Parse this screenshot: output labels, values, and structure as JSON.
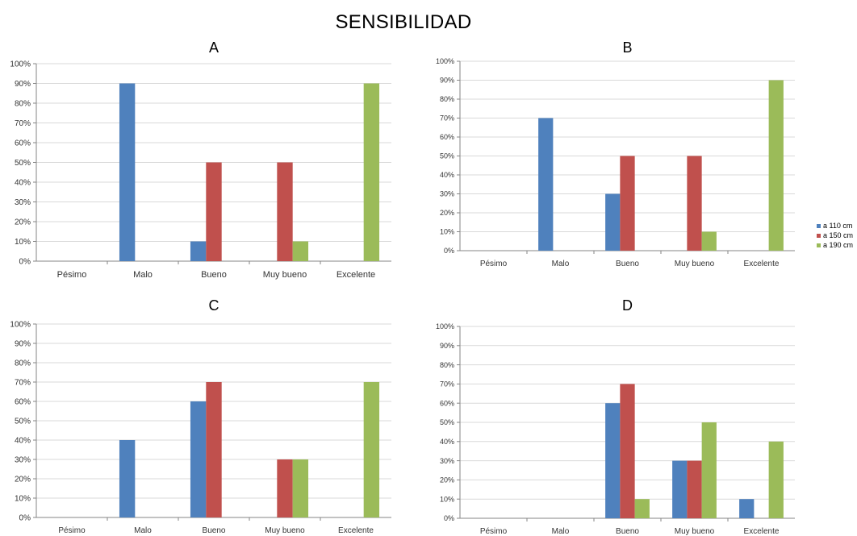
{
  "figure": {
    "title": "SENSIBILIDAD",
    "colors": {
      "a110": "#4f81bd",
      "a150": "#c0504d",
      "a190": "#9bbb59",
      "grid": "#d9d9d9",
      "axis": "#868686"
    }
  },
  "legend": [
    {
      "name": "a 110 cm",
      "color": "#4f81bd"
    },
    {
      "name": "a 150 cm",
      "color": "#c0504d"
    },
    {
      "name": "a 190 cm",
      "color": "#9bbb59"
    }
  ],
  "chart_data": [
    {
      "type": "bar",
      "title": "A",
      "categories": [
        "Pésimo",
        "Malo",
        "Bueno",
        "Muy bueno",
        "Excelente"
      ],
      "series": [
        {
          "name": "a 110 cm",
          "values": [
            0,
            90,
            10,
            0,
            0
          ]
        },
        {
          "name": "a 150 cm",
          "values": [
            0,
            0,
            50,
            50,
            0
          ]
        },
        {
          "name": "a 190 cm",
          "values": [
            0,
            0,
            0,
            10,
            90
          ]
        }
      ],
      "ylim": [
        0,
        100
      ],
      "yticks": [
        "0%",
        "10%",
        "20%",
        "30%",
        "40%",
        "50%",
        "60%",
        "70%",
        "80%",
        "90%",
        "100%"
      ],
      "grid": true,
      "legend": "right"
    },
    {
      "type": "bar",
      "title": "B",
      "categories": [
        "Pésimo",
        "Malo",
        "Bueno",
        "Muy bueno",
        "Excelente"
      ],
      "series": [
        {
          "name": "a 110 cm",
          "values": [
            0,
            70,
            30,
            0,
            0
          ]
        },
        {
          "name": "a 150 cm",
          "values": [
            0,
            0,
            50,
            50,
            0
          ]
        },
        {
          "name": "a 190 cm",
          "values": [
            0,
            0,
            0,
            10,
            90
          ]
        }
      ],
      "ylim": [
        0,
        100
      ],
      "yticks": [
        "0%",
        "10%",
        "20%",
        "30%",
        "40%",
        "50%",
        "60%",
        "70%",
        "80%",
        "90%",
        "100%"
      ],
      "grid": true,
      "legend": "right"
    },
    {
      "type": "bar",
      "title": "C",
      "categories": [
        "Pésimo",
        "Malo",
        "Bueno",
        "Muy bueno",
        "Excelente"
      ],
      "series": [
        {
          "name": "a 110 cm",
          "values": [
            0,
            40,
            60,
            0,
            0
          ]
        },
        {
          "name": "a 150 cm",
          "values": [
            0,
            0,
            70,
            30,
            0
          ]
        },
        {
          "name": "a 190 cm",
          "values": [
            0,
            0,
            0,
            30,
            70
          ]
        }
      ],
      "ylim": [
        0,
        100
      ],
      "yticks": [
        "0%",
        "10%",
        "20%",
        "30%",
        "40%",
        "50%",
        "60%",
        "70%",
        "80%",
        "90%",
        "100%"
      ],
      "grid": true,
      "legend": "right"
    },
    {
      "type": "bar",
      "title": "D",
      "categories": [
        "Pésimo",
        "Malo",
        "Bueno",
        "Muy bueno",
        "Excelente"
      ],
      "series": [
        {
          "name": "a 110 cm",
          "values": [
            0,
            0,
            60,
            30,
            10
          ]
        },
        {
          "name": "a 150 cm",
          "values": [
            0,
            0,
            70,
            30,
            0
          ]
        },
        {
          "name": "a 190 cm",
          "values": [
            0,
            0,
            10,
            50,
            40
          ]
        }
      ],
      "ylim": [
        0,
        100
      ],
      "yticks": [
        "0%",
        "10%",
        "20%",
        "30%",
        "40%",
        "50%",
        "60%",
        "70%",
        "80%",
        "90%",
        "100%"
      ],
      "grid": true,
      "legend": "right"
    }
  ]
}
